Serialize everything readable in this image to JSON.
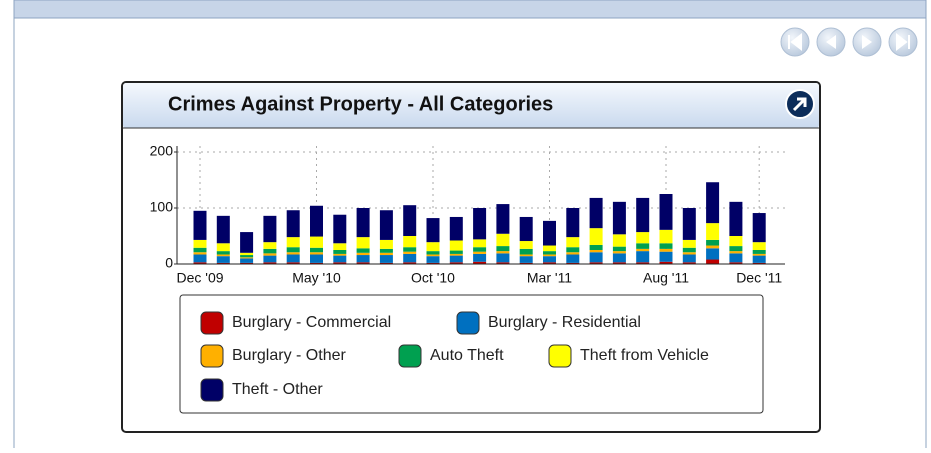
{
  "chart_data": {
    "type": "bar",
    "stacked": true,
    "title": "Crimes Against Property - All Categories",
    "categories": [
      "Dec '09",
      null,
      null,
      null,
      null,
      "May '10",
      null,
      null,
      null,
      null,
      "Oct '10",
      null,
      null,
      null,
      null,
      "Mar '11",
      null,
      null,
      null,
      null,
      "Aug '11",
      null,
      null,
      null,
      "Dec '11"
    ],
    "series": [
      {
        "name": "Burglary - Commercial",
        "color": "#c00000",
        "values": [
          3,
          2,
          2,
          3,
          3,
          2,
          3,
          3,
          2,
          3,
          2,
          3,
          4,
          3,
          2,
          3,
          2,
          3,
          3,
          3,
          4,
          3,
          8,
          3,
          2
        ]
      },
      {
        "name": "Burglary - Residential",
        "color": "#0070c0",
        "values": [
          14,
          12,
          8,
          12,
          14,
          15,
          12,
          13,
          14,
          15,
          12,
          12,
          14,
          16,
          12,
          11,
          15,
          18,
          16,
          20,
          18,
          14,
          20,
          16,
          13
        ]
      },
      {
        "name": "Burglary - Other",
        "color": "#ffb000",
        "values": [
          4,
          3,
          2,
          4,
          4,
          4,
          3,
          4,
          4,
          4,
          3,
          3,
          4,
          4,
          3,
          3,
          4,
          4,
          4,
          4,
          5,
          4,
          5,
          4,
          3
        ]
      },
      {
        "name": "Auto Theft",
        "color": "#00a050",
        "values": [
          8,
          6,
          4,
          8,
          9,
          8,
          7,
          8,
          7,
          8,
          6,
          6,
          8,
          9,
          10,
          6,
          9,
          9,
          8,
          10,
          10,
          8,
          10,
          9,
          7
        ]
      },
      {
        "name": "Theft from Vehicle",
        "color": "#ffff00",
        "values": [
          14,
          14,
          4,
          12,
          18,
          20,
          12,
          20,
          16,
          20,
          16,
          18,
          14,
          22,
          14,
          10,
          18,
          30,
          22,
          20,
          24,
          14,
          30,
          18,
          14
        ]
      },
      {
        "name": "Theft - Other",
        "color": "#000066",
        "values": [
          52,
          49,
          37,
          47,
          48,
          55,
          51,
          52,
          53,
          55,
          43,
          42,
          56,
          53,
          43,
          44,
          52,
          54,
          58,
          61,
          64,
          57,
          73,
          61,
          52
        ]
      }
    ],
    "ylim": [
      0,
      200
    ],
    "yticks": [
      0,
      100,
      200
    ],
    "grid": true
  }
}
